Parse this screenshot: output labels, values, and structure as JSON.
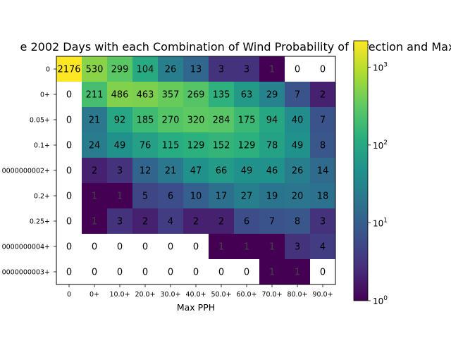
{
  "chart_data": {
    "type": "heatmap",
    "title": "e 2002 Days with each Combination of Wind Probability of Direction and Max",
    "xlabel": "Max PPH",
    "ylabel": "",
    "x_categories": [
      "0",
      "0+",
      "10.0+",
      "20.0+",
      "30.0+",
      "40.0+",
      "50.0+",
      "60.0+",
      "70.0+",
      "80.0+",
      "90.0+"
    ],
    "y_categories": [
      "0",
      "0+",
      "0.05+",
      "0.1+",
      "0000000002+",
      "0.2+",
      "0.25+",
      "0000000004+",
      "0000000003+"
    ],
    "values": [
      [
        2176,
        530,
        299,
        104,
        26,
        13,
        3,
        3,
        1,
        0,
        0
      ],
      [
        0,
        211,
        486,
        463,
        357,
        269,
        135,
        63,
        29,
        7,
        2
      ],
      [
        0,
        21,
        92,
        185,
        270,
        320,
        284,
        175,
        94,
        40,
        7
      ],
      [
        0,
        24,
        49,
        76,
        115,
        129,
        152,
        129,
        78,
        49,
        8
      ],
      [
        0,
        2,
        3,
        12,
        21,
        47,
        66,
        49,
        46,
        26,
        14
      ],
      [
        0,
        1,
        1,
        5,
        6,
        10,
        17,
        27,
        19,
        20,
        18
      ],
      [
        0,
        1,
        3,
        2,
        4,
        2,
        2,
        6,
        7,
        8,
        3
      ],
      [
        0,
        0,
        0,
        0,
        0,
        0,
        1,
        1,
        1,
        3,
        4
      ],
      [
        0,
        0,
        0,
        0,
        0,
        0,
        0,
        0,
        1,
        1,
        0
      ]
    ],
    "colormap": "viridis",
    "color_scale": "log",
    "color_range": [
      1,
      2176
    ],
    "zero_color": "#ffffff",
    "colorbar_ticks": [
      {
        "base": "10",
        "exp": "0",
        "value": 1
      },
      {
        "base": "10",
        "exp": "1",
        "value": 10
      },
      {
        "base": "10",
        "exp": "2",
        "value": 100
      },
      {
        "base": "10",
        "exp": "3",
        "value": 1000
      }
    ]
  }
}
